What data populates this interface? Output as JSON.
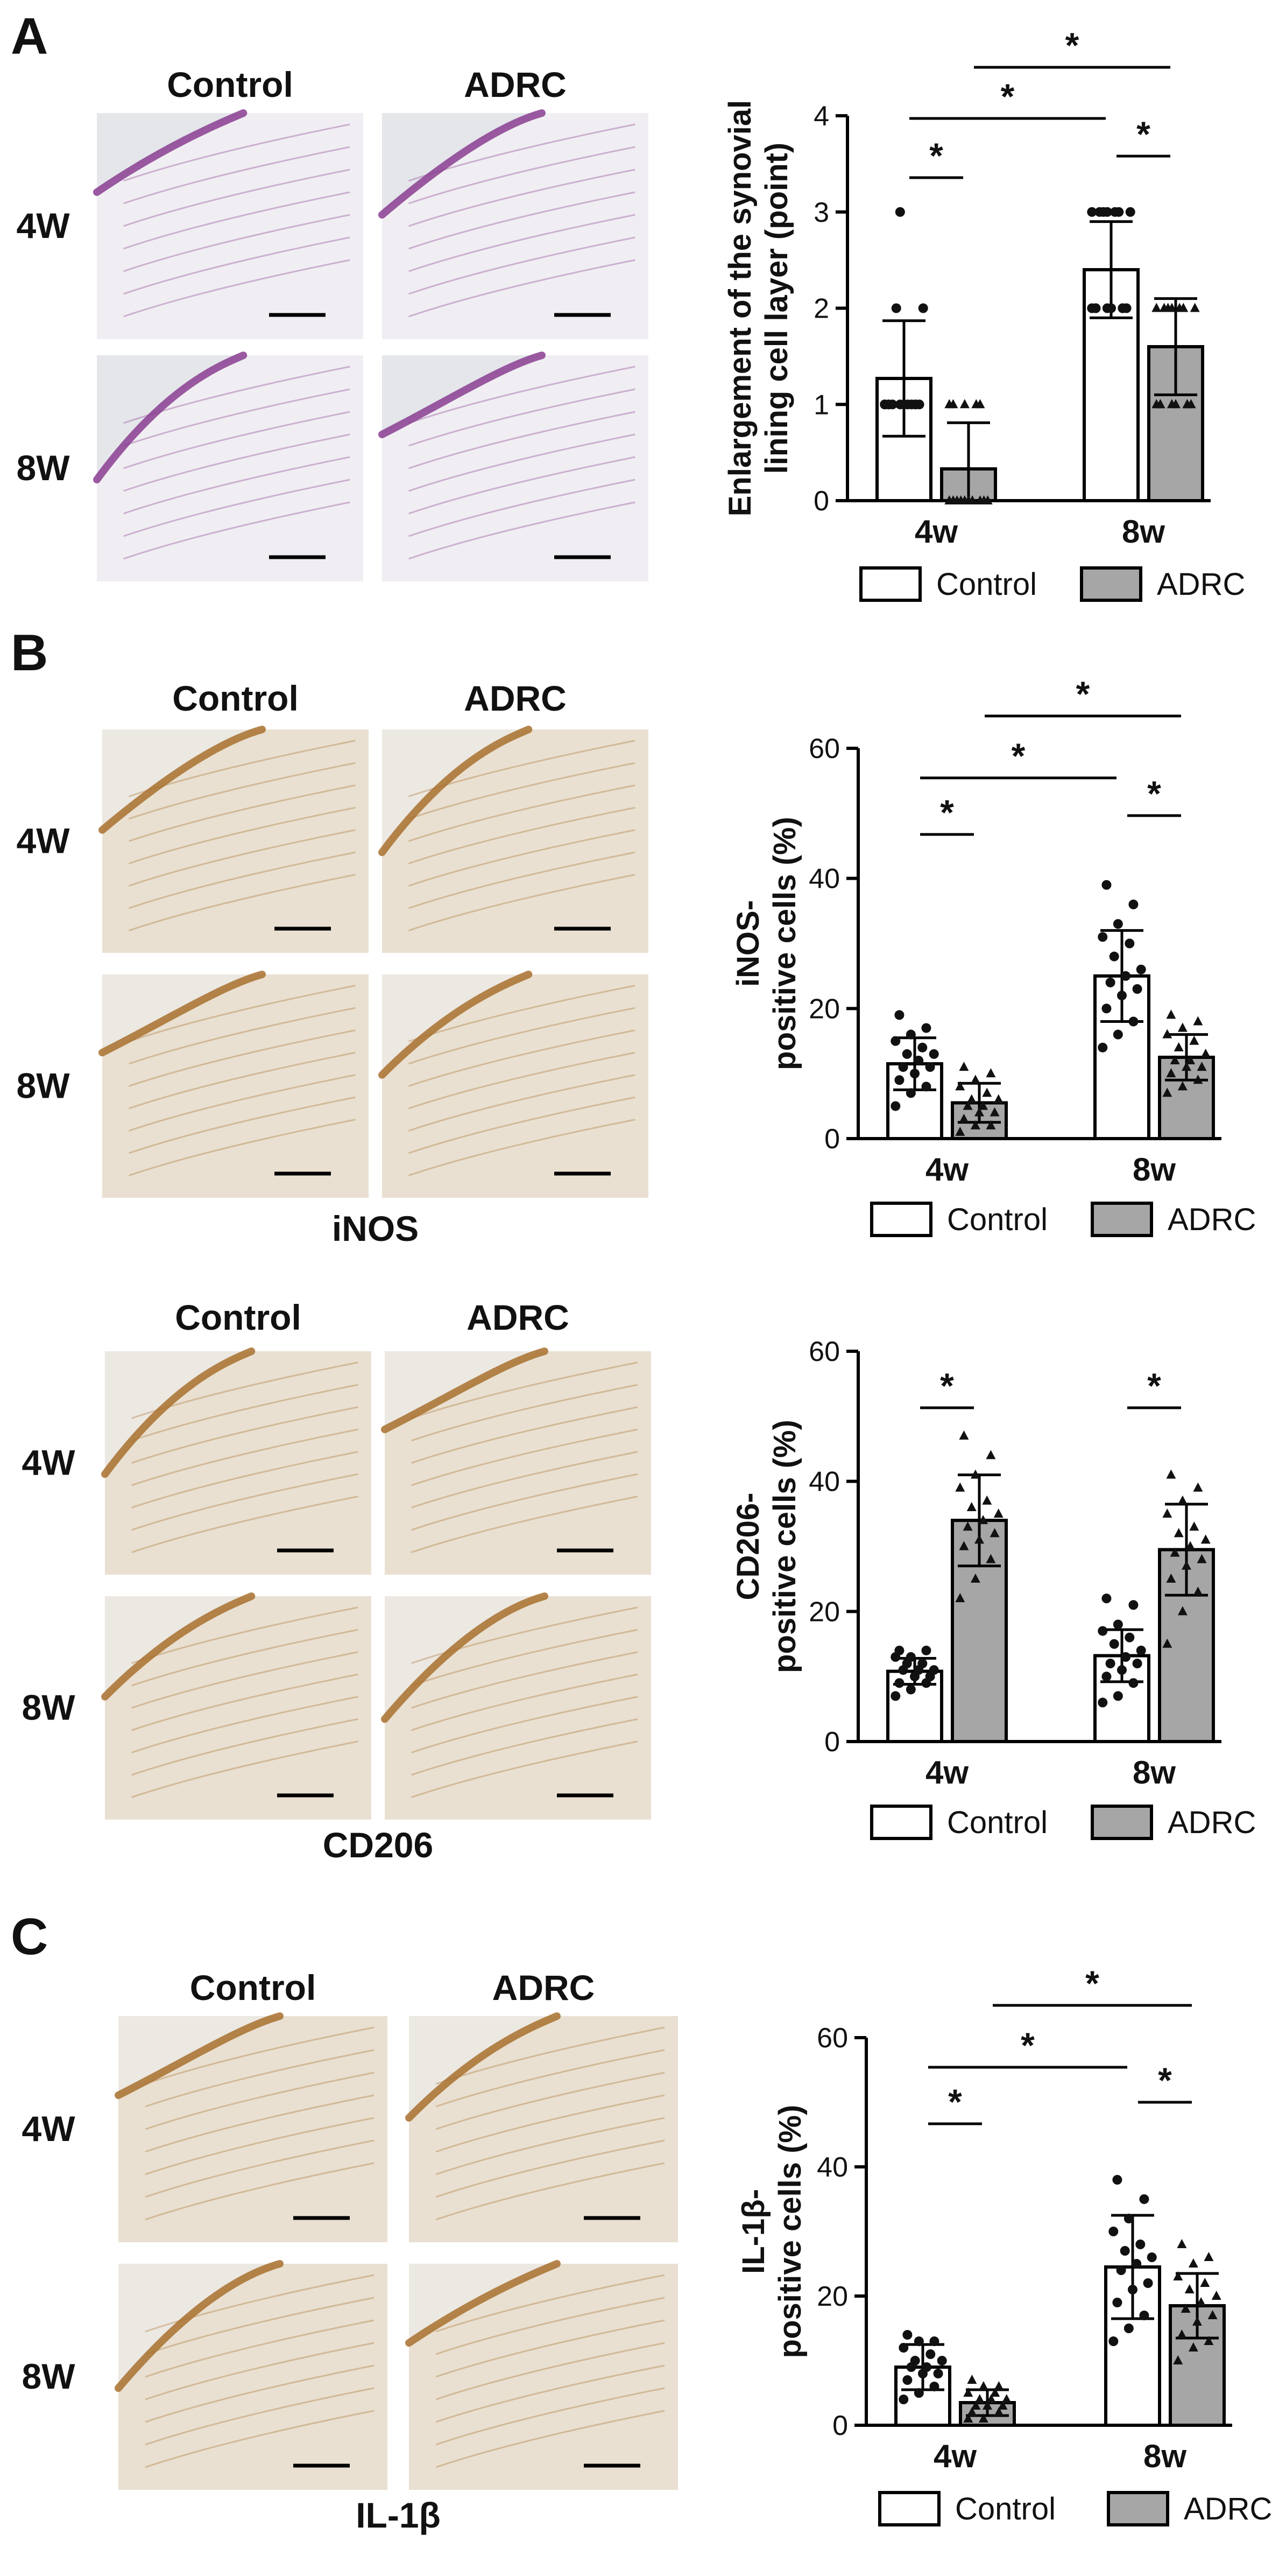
{
  "panels": {
    "A": {
      "letter": "A",
      "col_labels": [
        "Control",
        "ADRC"
      ],
      "row_labels": [
        "4W",
        "8W"
      ],
      "stain": "",
      "tissue": "he"
    },
    "B1": {
      "letter": "B",
      "col_labels": [
        "Control",
        "ADRC"
      ],
      "row_labels": [
        "4W",
        "8W"
      ],
      "stain": "iNOS",
      "tissue": "dab"
    },
    "B2": {
      "letter": "",
      "col_labels": [
        "Control",
        "ADRC"
      ],
      "row_labels": [
        "4W",
        "8W"
      ],
      "stain": "CD206",
      "tissue": "dab"
    },
    "C": {
      "letter": "C",
      "col_labels": [
        "Control",
        "ADRC"
      ],
      "row_labels": [
        "4W",
        "8W"
      ],
      "stain": "IL-1β",
      "tissue": "dab"
    }
  },
  "colors": {
    "control_fill": "#ffffff",
    "adrc_fill": "#a6a6a6",
    "he_stain": "#8a3d92",
    "dab_stain": "#a8702e"
  },
  "chart_data": [
    {
      "type": "bar",
      "ylabel": [
        "Enlargement of the synovial",
        "lining cell layer (point)"
      ],
      "categories": [
        "4w",
        "8w"
      ],
      "series": [
        {
          "name": "Control",
          "values": [
            1.27,
            2.4
          ],
          "err": [
            0.6,
            0.5
          ]
        },
        {
          "name": "ADRC",
          "values": [
            0.33,
            1.6
          ],
          "err": [
            0.48,
            0.5
          ]
        }
      ],
      "ylim": [
        0,
        4
      ],
      "yticks": [
        0,
        1,
        2,
        3,
        4
      ],
      "significance": [
        {
          "from": 0,
          "to": 1,
          "label": "*"
        },
        {
          "from": 0,
          "to": 2,
          "label": "*"
        },
        {
          "from": 2,
          "to": 3,
          "label": "*"
        },
        {
          "from": 1,
          "to": 3,
          "label": "*"
        }
      ],
      "points": [
        [
          1,
          1,
          1,
          1,
          1,
          1,
          1,
          1,
          2,
          2,
          1,
          1,
          3,
          1,
          1
        ],
        [
          0,
          0,
          0,
          0,
          0,
          0,
          0,
          0,
          0,
          0,
          1,
          1,
          1,
          1,
          1
        ],
        [
          2,
          2,
          2,
          2,
          2,
          2,
          3,
          3,
          3,
          3,
          3,
          3,
          3,
          2,
          2
        ],
        [
          1,
          1,
          1,
          1,
          1,
          1,
          2,
          2,
          2,
          2,
          2,
          2,
          2,
          1,
          1
        ]
      ],
      "legend": [
        "Control",
        "ADRC"
      ]
    },
    {
      "type": "bar",
      "ylabel": [
        "iNOS-",
        "positive cells (%)"
      ],
      "categories": [
        "4w",
        "8w"
      ],
      "series": [
        {
          "name": "Control",
          "values": [
            11.5,
            25
          ],
          "err": [
            4,
            7
          ]
        },
        {
          "name": "ADRC",
          "values": [
            5.5,
            12.5
          ],
          "err": [
            3,
            3.5
          ]
        }
      ],
      "ylim": [
        0,
        60
      ],
      "yticks": [
        0,
        20,
        40,
        60
      ],
      "significance": [
        {
          "from": 0,
          "to": 1,
          "label": "*"
        },
        {
          "from": 0,
          "to": 2,
          "label": "*"
        },
        {
          "from": 2,
          "to": 3,
          "label": "*"
        },
        {
          "from": 1,
          "to": 3,
          "label": "*"
        }
      ],
      "points": [
        [
          5,
          7,
          8,
          9,
          10,
          11,
          11,
          12,
          13,
          13,
          14,
          15,
          16,
          17,
          19
        ],
        [
          1,
          2,
          2,
          3,
          4,
          4,
          5,
          5,
          6,
          6,
          7,
          8,
          9,
          10,
          11
        ],
        [
          14,
          16,
          18,
          20,
          22,
          23,
          24,
          25,
          26,
          28,
          30,
          31,
          33,
          36,
          39
        ],
        [
          7,
          8,
          9,
          10,
          11,
          11,
          12,
          12,
          13,
          14,
          15,
          16,
          17,
          18,
          19
        ]
      ],
      "legend": [
        "Control",
        "ADRC"
      ]
    },
    {
      "type": "bar",
      "ylabel": [
        "CD206-",
        "positive cells (%)"
      ],
      "categories": [
        "4w",
        "8w"
      ],
      "series": [
        {
          "name": "Control",
          "values": [
            10.8,
            13.2
          ],
          "err": [
            2,
            4
          ]
        },
        {
          "name": "ADRC",
          "values": [
            34,
            29.5
          ],
          "err": [
            7,
            7
          ]
        }
      ],
      "ylim": [
        0,
        60
      ],
      "yticks": [
        0,
        20,
        40,
        60
      ],
      "significance": [
        {
          "from": 0,
          "to": 1,
          "label": "*"
        },
        {
          "from": 2,
          "to": 3,
          "label": "*"
        }
      ],
      "points": [
        [
          7,
          8,
          9,
          9,
          10,
          10,
          11,
          11,
          11,
          12,
          12,
          13,
          13,
          14,
          14
        ],
        [
          22,
          25,
          28,
          30,
          31,
          32,
          33,
          34,
          35,
          36,
          37,
          39,
          41,
          44,
          47
        ],
        [
          6,
          7,
          9,
          10,
          11,
          12,
          12,
          13,
          14,
          15,
          16,
          17,
          18,
          21,
          22
        ],
        [
          15,
          20,
          23,
          25,
          27,
          28,
          29,
          30,
          31,
          32,
          33,
          35,
          37,
          39,
          41
        ]
      ],
      "legend": [
        "Control",
        "ADRC"
      ]
    },
    {
      "type": "bar",
      "ylabel": [
        "IL-1β-",
        "positive cells (%)"
      ],
      "categories": [
        "4w",
        "8w"
      ],
      "series": [
        {
          "name": "Control",
          "values": [
            9,
            24.5
          ],
          "err": [
            3.5,
            8
          ]
        },
        {
          "name": "ADRC",
          "values": [
            3.5,
            18.5
          ],
          "err": [
            2,
            5
          ]
        }
      ],
      "ylim": [
        0,
        60
      ],
      "yticks": [
        0,
        20,
        40,
        60
      ],
      "significance": [
        {
          "from": 0,
          "to": 1,
          "label": "*"
        },
        {
          "from": 0,
          "to": 2,
          "label": "*"
        },
        {
          "from": 2,
          "to": 3,
          "label": "*"
        },
        {
          "from": 1,
          "to": 3,
          "label": "*"
        }
      ],
      "points": [
        [
          4,
          5,
          6,
          7,
          8,
          8,
          9,
          9,
          10,
          10,
          11,
          12,
          13,
          13,
          14
        ],
        [
          1,
          1,
          2,
          2,
          3,
          3,
          3,
          4,
          4,
          4,
          5,
          5,
          6,
          6,
          7
        ],
        [
          13,
          15,
          17,
          19,
          21,
          22,
          24,
          25,
          26,
          27,
          28,
          30,
          32,
          35,
          38
        ],
        [
          10,
          12,
          13,
          14,
          16,
          17,
          18,
          19,
          20,
          21,
          22,
          23,
          25,
          26,
          28
        ]
      ],
      "legend": [
        "Control",
        "ADRC"
      ]
    }
  ]
}
